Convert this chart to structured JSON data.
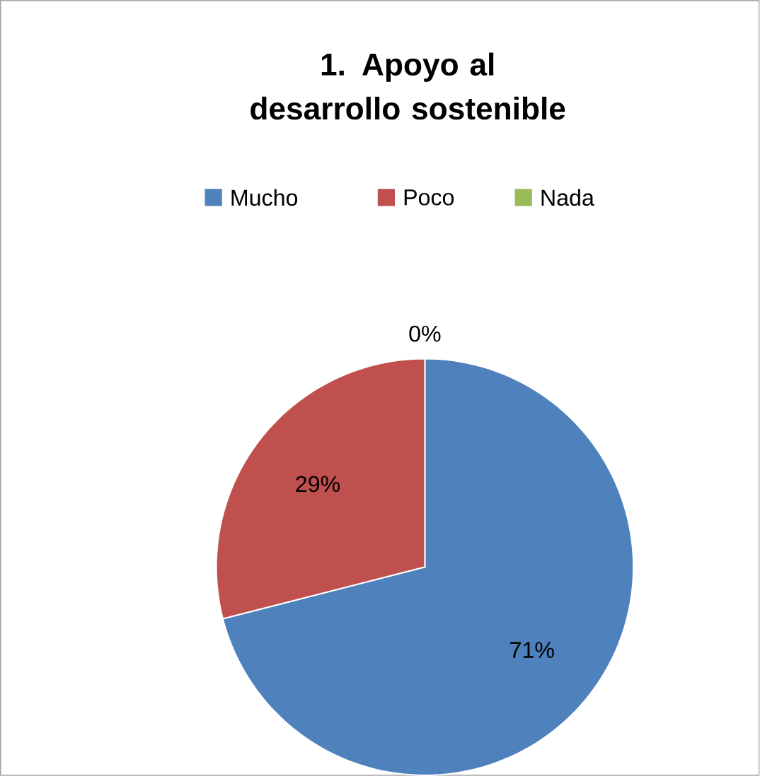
{
  "chart_data": {
    "type": "pie",
    "title": "1. Apoyo al desarrollo sostenible",
    "categories": [
      "Mucho",
      "Poco",
      "Nada"
    ],
    "values": [
      71,
      29,
      0
    ],
    "colors": [
      "#4f81bd",
      "#c0504d",
      "#9bbb59"
    ],
    "value_labels": [
      "71%",
      "29%",
      "0%"
    ],
    "legend": "top"
  }
}
